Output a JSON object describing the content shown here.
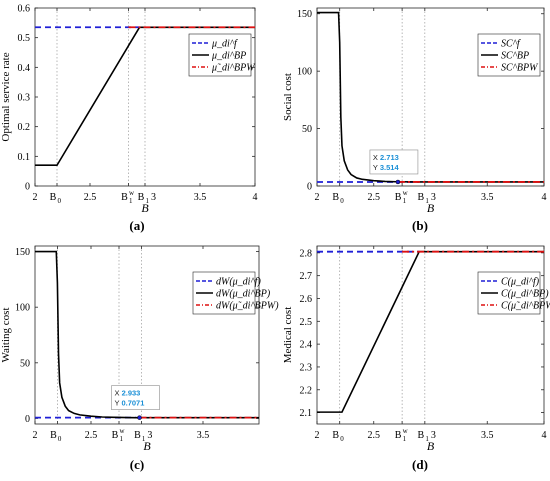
{
  "panels": [
    {
      "caption": "(a)",
      "chart_data": {
        "type": "line",
        "xlabel": "B",
        "ylabel": "Optimal service rate",
        "xlim": [
          2,
          4
        ],
        "ylim": [
          0,
          0.6
        ],
        "yticks": [
          "0",
          "0.1",
          "0.2",
          "0.3",
          "0.4",
          "0.5",
          "0.6"
        ],
        "xticks": [
          {
            "value": 2,
            "label": "2",
            "sub": ""
          },
          {
            "value": 2.2,
            "label": "B",
            "sub": "0"
          },
          {
            "value": 2.5,
            "label": "2.5",
            "sub": ""
          },
          {
            "value": 2.85,
            "label": "B",
            "sub": "1",
            "sup": "w"
          },
          {
            "value": 3.0,
            "label": "B",
            "sub": "1",
            "after": "3"
          },
          {
            "value": 3.5,
            "label": "3.5",
            "sub": ""
          },
          {
            "value": 4,
            "label": "4",
            "sub": ""
          }
        ],
        "vlines": [
          2.2,
          2.85,
          3.0
        ],
        "series": [
          {
            "name": "μ_di^f",
            "color": "#1f1fd6",
            "dash": "dash",
            "x": [
              2,
              2.95
            ],
            "y": [
              0.535,
              0.535
            ]
          },
          {
            "name": "μ_di^BP",
            "color": "#000000",
            "dash": "solid",
            "x": [
              2,
              2.2,
              2.95,
              4
            ],
            "y": [
              0.07,
              0.07,
              0.535,
              0.535
            ]
          },
          {
            "name": "μ̃_di^BPW",
            "color": "#dd1111",
            "dash": "dashdot",
            "x": [
              2.85,
              4
            ],
            "y": [
              0.535,
              0.535
            ]
          }
        ],
        "legend": {
          "placement": "top-right",
          "labels": [
            "μ_di^f",
            "μ_di^BP",
            "μ̃_di^BPW"
          ]
        },
        "datatip": null
      }
    },
    {
      "caption": "(b)",
      "chart_data": {
        "type": "line",
        "xlabel": "B",
        "ylabel": "Social cost",
        "xlim": [
          2,
          4
        ],
        "ylim": [
          0,
          155
        ],
        "yticks": [
          "0",
          "50",
          "100",
          "150"
        ],
        "xticks": [
          {
            "value": 2,
            "label": "2",
            "sub": ""
          },
          {
            "value": 2.2,
            "label": "B",
            "sub": "0"
          },
          {
            "value": 2.5,
            "label": "2.5",
            "sub": ""
          },
          {
            "value": 2.75,
            "label": "B",
            "sub": "1",
            "sup": "w"
          },
          {
            "value": 2.95,
            "label": "B",
            "sub": "1",
            "after": "3"
          },
          {
            "value": 3.5,
            "label": "3.5",
            "sub": ""
          },
          {
            "value": 4,
            "label": "4",
            "sub": ""
          }
        ],
        "vlines": [
          2.2,
          2.75,
          2.95
        ],
        "series": [
          {
            "name": "SC^f",
            "color": "#1f1fd6",
            "dash": "dash",
            "x": [
              2,
              2.9
            ],
            "y": [
              3.5,
              3.5
            ]
          },
          {
            "name": "SC^BP",
            "color": "#000000",
            "dash": "solid",
            "x": [
              2,
              2.19,
              2.2,
              2.21,
              2.22,
              2.24,
              2.27,
              2.3,
              2.35,
              2.4,
              2.5,
              2.6,
              2.7,
              2.9,
              4
            ],
            "y": [
              151,
              151,
              125,
              60,
              35,
              22,
              14,
              10,
              7,
              5.8,
              4.6,
              4.0,
              3.7,
              3.5,
              3.5
            ]
          },
          {
            "name": "SC^BPW",
            "color": "#dd1111",
            "dash": "dashdot",
            "x": [
              2.713,
              4
            ],
            "y": [
              3.514,
              3.514
            ]
          }
        ],
        "legend": {
          "placement": "top-right",
          "labels": [
            "SC^f",
            "SC^BP",
            "SC^BPW"
          ]
        },
        "datatip": {
          "x": 2.713,
          "y": 3.514,
          "xtext": "X 2.713",
          "ytext": "Y 3.514"
        }
      }
    },
    {
      "caption": "(c)",
      "chart_data": {
        "type": "line",
        "xlabel": "B",
        "ylabel": "Waiting cost",
        "xlim": [
          2,
          4
        ],
        "ylim": [
          -5,
          155
        ],
        "yticks": [
          "0",
          "50",
          "100",
          "150"
        ],
        "xticks": [
          {
            "value": 2,
            "label": "2",
            "sub": ""
          },
          {
            "value": 2.2,
            "label": "B",
            "sub": "0"
          },
          {
            "value": 2.5,
            "label": "2.5",
            "sub": ""
          },
          {
            "value": 2.75,
            "label": "B",
            "sub": "1",
            "sup": "w"
          },
          {
            "value": 2.95,
            "label": "B",
            "sub": "1",
            "after": "3"
          },
          {
            "value": 3.5,
            "label": "3.5",
            "sub": ""
          }
        ],
        "vlines": [
          2.2,
          2.75,
          2.95
        ],
        "series": [
          {
            "name": "dW(μ_di^f)",
            "color": "#1f1fd6",
            "dash": "dash",
            "x": [
              2,
              2.9
            ],
            "y": [
              0.7,
              0.7
            ]
          },
          {
            "name": "dW(μ_di^BP)",
            "color": "#000000",
            "dash": "solid",
            "x": [
              2,
              2.19,
              2.2,
              2.21,
              2.22,
              2.24,
              2.27,
              2.3,
              2.35,
              2.4,
              2.5,
              2.6,
              2.7,
              2.9,
              4
            ],
            "y": [
              150,
              150,
              122,
              58,
              32,
              19,
              11,
              7,
              4.5,
              3.2,
              2.0,
              1.3,
              1.0,
              0.7,
              0.7
            ]
          },
          {
            "name": "dW(μ̃_di^BPW)",
            "color": "#dd1111",
            "dash": "dashdot",
            "x": [
              2.933,
              4
            ],
            "y": [
              0.7071,
              0.7071
            ]
          }
        ],
        "legend": {
          "placement": "top-right",
          "labels": [
            "dW(μ_di^f)",
            "dW(μ_di^BP)",
            "dW(μ̃_di^BPW)"
          ]
        },
        "datatip": {
          "x": 2.933,
          "y": 0.7071,
          "xtext": "X 2.933",
          "ytext": "Y 0.7071"
        }
      }
    },
    {
      "caption": "(d)",
      "chart_data": {
        "type": "line",
        "xlabel": "B",
        "ylabel": "Medical cost",
        "xlim": [
          2,
          4
        ],
        "ylim": [
          2.05,
          2.83
        ],
        "yticks": [
          "2.1",
          "2.2",
          "2.3",
          "2.4",
          "2.5",
          "2.6",
          "2.7",
          "2.8"
        ],
        "xticks": [
          {
            "value": 2,
            "label": "2",
            "sub": ""
          },
          {
            "value": 2.2,
            "label": "B",
            "sub": "0"
          },
          {
            "value": 2.5,
            "label": "2.5",
            "sub": ""
          },
          {
            "value": 2.75,
            "label": "B",
            "sub": "1",
            "sup": "w"
          },
          {
            "value": 2.95,
            "label": "B",
            "sub": "1",
            "after": "3"
          },
          {
            "value": 3.5,
            "label": "3.5",
            "sub": ""
          },
          {
            "value": 4,
            "label": "4",
            "sub": ""
          }
        ],
        "vlines": [
          2.2,
          2.75,
          2.95
        ],
        "series": [
          {
            "name": "C(μ_di^f)",
            "color": "#1f1fd6",
            "dash": "dash",
            "x": [
              2,
              2.9
            ],
            "y": [
              2.805,
              2.805
            ]
          },
          {
            "name": "C(μ_di^BP)",
            "color": "#000000",
            "dash": "solid",
            "x": [
              2,
              2.22,
              2.9,
              4
            ],
            "y": [
              2.102,
              2.102,
              2.805,
              2.805
            ]
          },
          {
            "name": "C(μ̃_di^BPW)",
            "color": "#dd1111",
            "dash": "dashdot",
            "x": [
              2.75,
              4
            ],
            "y": [
              2.805,
              2.805
            ]
          }
        ],
        "legend": {
          "placement": "top-right",
          "labels": [
            "C(μ_di^f)",
            "C(μ_di^BP)",
            "C(μ̃_di^BPW)"
          ]
        },
        "datatip": null
      }
    }
  ]
}
